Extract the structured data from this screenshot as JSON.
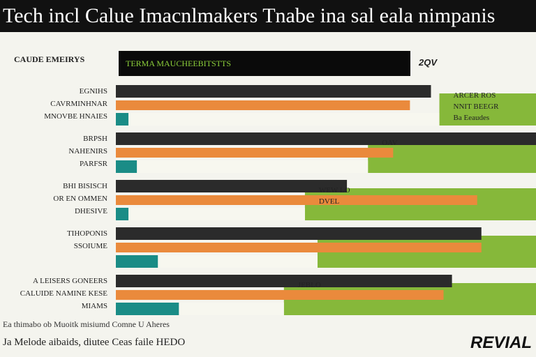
{
  "title": "Tech incl Calue Imacnlmakers Tnabe ina sal eala nimpanis",
  "header": {
    "label": "CAUDE EMEIRYS",
    "bar_text": "TERMA MAUCHEEBITSTTS",
    "value": "2QV"
  },
  "footer": {
    "line1": "Ea thimabo ob Muoitk misiumd Comne U Aheres",
    "line2": "Ja Melode aibaids, diutee Ceas faile HEDO",
    "brand": "REVIAL"
  },
  "chart_data": {
    "type": "bar",
    "title": "Tech incl Calue Imacnlmakers Tnabe ina sal eala nimpanis",
    "xlabel": "",
    "ylabel": "",
    "xlim": [
      0,
      100
    ],
    "legend": "none",
    "grid": false,
    "colors": {
      "black": "#2b2b2b",
      "orange": "#ea8a3c",
      "teal": "#1a8c86",
      "green": "#86b83a",
      "light": "#f7f7ef"
    },
    "groups": [
      {
        "labels": [
          "EGNIHS",
          "CAVRMINHNAR",
          "MNOVBE HNAIES"
        ],
        "black": 75,
        "orange": 70,
        "teal": 3,
        "green": 100,
        "green_start": 77,
        "value_labels": [
          "",
          "",
          ""
        ],
        "annotations": [
          "ARCER ROS",
          "NNIT BEEGR",
          "Ba Eeaudes"
        ]
      },
      {
        "labels": [
          "BRPSH",
          "NAHENIRS",
          "PARFSR"
        ],
        "black": 100,
        "orange": 66,
        "teal": 5,
        "green": 100,
        "green_start": 60,
        "value_labels": [
          "",
          "",
          ""
        ],
        "annotations": [
          "OAV",
          "",
          ""
        ]
      },
      {
        "labels": [
          "BHI BISISCH",
          "OR EN OMMEN",
          "DHESIVE"
        ],
        "black": 55,
        "orange": 86,
        "teal": 3,
        "green": 100,
        "green_start": 45,
        "value_labels": [
          "",
          "",
          ""
        ],
        "annotations": [
          "WEW LO",
          "DVEL",
          ""
        ]
      },
      {
        "labels": [
          "TIHOPONIS",
          "SSOIUME"
        ],
        "black": 87,
        "orange": 87,
        "teal": 10,
        "green": 100,
        "green_start": 48,
        "value_labels": [
          "",
          "",
          ""
        ],
        "annotations": [
          "",
          "",
          ""
        ]
      },
      {
        "labels": [
          "A LEISERS GONEERS",
          "CALUIDE NAMINE KESE",
          "MIAMS"
        ],
        "black": 80,
        "orange": 78,
        "teal": 15,
        "green": 100,
        "green_start": 40,
        "value_labels": [
          "",
          "",
          ""
        ],
        "annotations": [
          "JEBLO",
          "",
          ""
        ]
      }
    ]
  }
}
